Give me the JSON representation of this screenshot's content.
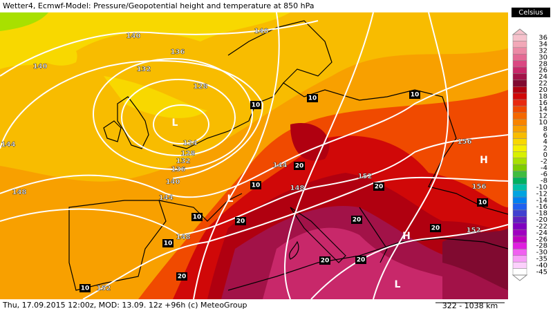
{
  "header": {
    "title": "Wetter4, Ecmwf-Model: Pressure/Geopotential height and temperature at 850 hPa"
  },
  "legend": {
    "title": "Celsius",
    "items": [
      {
        "label": "36",
        "color": "#f6c2cc"
      },
      {
        "label": "34",
        "color": "#f2a8b8"
      },
      {
        "label": "32",
        "color": "#ec8aa6"
      },
      {
        "label": "30",
        "color": "#e46a94"
      },
      {
        "label": "28",
        "color": "#da4882"
      },
      {
        "label": "26",
        "color": "#c8286a"
      },
      {
        "label": "24",
        "color": "#a21248"
      },
      {
        "label": "22",
        "color": "#800a30"
      },
      {
        "label": "20",
        "color": "#b00010"
      },
      {
        "label": "18",
        "color": "#d00808"
      },
      {
        "label": "16",
        "color": "#e82a10"
      },
      {
        "label": "14",
        "color": "#f04a00"
      },
      {
        "label": "12",
        "color": "#f46800"
      },
      {
        "label": "10",
        "color": "#f88400"
      },
      {
        "label": "8",
        "color": "#f8a000"
      },
      {
        "label": "6",
        "color": "#f8bc00"
      },
      {
        "label": "4",
        "color": "#f8d800"
      },
      {
        "label": "2",
        "color": "#f4f000"
      },
      {
        "label": "0",
        "color": "#d8f000"
      },
      {
        "label": "-2",
        "color": "#a8e000"
      },
      {
        "label": "-4",
        "color": "#7ccc00"
      },
      {
        "label": "-6",
        "color": "#40bc40"
      },
      {
        "label": "-8",
        "color": "#00b060"
      },
      {
        "label": "-10",
        "color": "#00c0a8"
      },
      {
        "label": "-12",
        "color": "#00a4e0"
      },
      {
        "label": "-14",
        "color": "#0080f0"
      },
      {
        "label": "-16",
        "color": "#2060f0"
      },
      {
        "label": "-18",
        "color": "#4040d0"
      },
      {
        "label": "-20",
        "color": "#6020c0"
      },
      {
        "label": "-22",
        "color": "#8000c0"
      },
      {
        "label": "-24",
        "color": "#a000c0"
      },
      {
        "label": "-26",
        "color": "#c000c0"
      },
      {
        "label": "-28",
        "color": "#e020e0"
      },
      {
        "label": "-30",
        "color": "#f060f0"
      },
      {
        "label": "-35",
        "color": "#f8a0f8"
      },
      {
        "label": "-40",
        "color": "#fcd0fc"
      },
      {
        "label": "-45",
        "color": "#ffffff"
      }
    ]
  },
  "map": {
    "isobar_labels": [
      "140",
      "140",
      "140",
      "136",
      "132",
      "128",
      "124",
      "128",
      "132",
      "136",
      "140",
      "144",
      "144",
      "148",
      "148",
      "152",
      "144",
      "148",
      "152",
      "156",
      "156",
      "152"
    ],
    "temperature_labels": [
      "10",
      "10",
      "10",
      "20",
      "10",
      "20",
      "10",
      "20",
      "20",
      "20",
      "10",
      "20",
      "20",
      "20",
      "10",
      "10"
    ],
    "pressure_centers": [
      "H",
      "H",
      "L",
      "L",
      "L"
    ]
  },
  "footer": {
    "info": "Thu, 17.09.2015 12:00z, MOD: 13.09. 12z +96h (c) MeteoGroup",
    "scale": "322 - 1038 km"
  }
}
